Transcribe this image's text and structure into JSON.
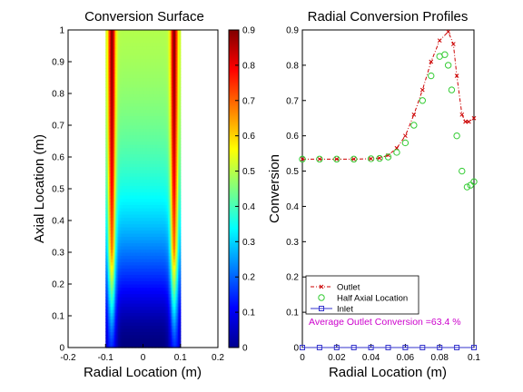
{
  "chart_data": [
    {
      "type": "heatmap",
      "title": "Conversion Surface",
      "xlabel": "Radial Location (m)",
      "ylabel": "Axial Location (m)",
      "xlim": [
        -0.2,
        0.2
      ],
      "ylim": [
        0,
        1
      ],
      "xticks": [
        "-0.2",
        "-0.1",
        "0",
        "0.1",
        "0.2"
      ],
      "yticks": [
        "0",
        "0.1",
        "0.2",
        "0.3",
        "0.4",
        "0.5",
        "0.6",
        "0.7",
        "0.8",
        "0.9",
        "1"
      ],
      "domain_x": [
        -0.1,
        0.1
      ],
      "colorbar": {
        "range": [
          0,
          0.9
        ],
        "ticks": [
          "0",
          "0.1",
          "0.2",
          "0.3",
          "0.4",
          "0.5",
          "0.6",
          "0.7",
          "0.8",
          "0.9"
        ],
        "colormap": "jet"
      },
      "core_value": 0.53,
      "wall_peak_value": 0.9,
      "inlet_value": 0.0
    },
    {
      "type": "line",
      "title": "Radial Conversion Profiles",
      "xlabel": "Radial Location (m)",
      "ylabel": "Conversion",
      "xlim": [
        0,
        0.1
      ],
      "ylim": [
        0,
        0.9
      ],
      "xticks": [
        "0",
        "0.02",
        "0.04",
        "0.06",
        "0.08",
        "0.1"
      ],
      "yticks": [
        "0",
        "0.1",
        "0.2",
        "0.3",
        "0.4",
        "0.5",
        "0.6",
        "0.7",
        "0.8",
        "0.9"
      ],
      "legend_position": "bottom-left",
      "annotation": "Average Outlet Conversion =63.4 %",
      "series": [
        {
          "name": "Outlet",
          "color": "#cc0000",
          "marker": "x",
          "line": "dashdot",
          "x": [
            0,
            0.01,
            0.02,
            0.03,
            0.04,
            0.045,
            0.05,
            0.055,
            0.06,
            0.065,
            0.07,
            0.075,
            0.08,
            0.085,
            0.088,
            0.09,
            0.093,
            0.095,
            0.097,
            0.1
          ],
          "y": [
            0.534,
            0.534,
            0.534,
            0.534,
            0.535,
            0.537,
            0.545,
            0.565,
            0.6,
            0.66,
            0.73,
            0.81,
            0.87,
            0.895,
            0.86,
            0.77,
            0.66,
            0.64,
            0.64,
            0.65
          ]
        },
        {
          "name": "Half Axial Location",
          "color": "#33cc33",
          "marker": "o",
          "line": "none",
          "x": [
            0,
            0.01,
            0.02,
            0.03,
            0.04,
            0.045,
            0.05,
            0.055,
            0.06,
            0.065,
            0.07,
            0.075,
            0.08,
            0.083,
            0.085,
            0.087,
            0.09,
            0.093,
            0.096,
            0.098,
            0.1
          ],
          "y": [
            0.534,
            0.534,
            0.534,
            0.534,
            0.535,
            0.536,
            0.54,
            0.553,
            0.58,
            0.63,
            0.7,
            0.77,
            0.825,
            0.83,
            0.8,
            0.73,
            0.6,
            0.5,
            0.455,
            0.46,
            0.47
          ]
        },
        {
          "name": "Inlet",
          "color": "#3333cc",
          "marker": "s",
          "line": "solid",
          "x": [
            0,
            0.01,
            0.02,
            0.03,
            0.04,
            0.05,
            0.06,
            0.07,
            0.08,
            0.09,
            0.1
          ],
          "y": [
            0,
            0,
            0,
            0,
            0,
            0,
            0,
            0,
            0,
            0,
            0
          ]
        }
      ]
    }
  ]
}
